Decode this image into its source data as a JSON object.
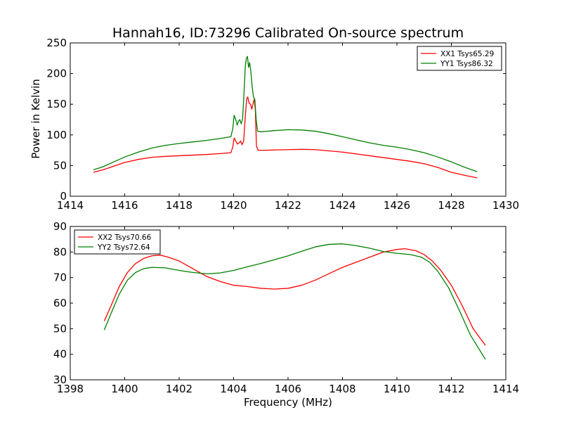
{
  "chart_data": [
    {
      "type": "line",
      "title": "Hannah16, ID:73296 Calibrated On-source spectrum",
      "xlabel": "",
      "ylabel": "Power in Kelvin",
      "xlim": [
        1414,
        1430
      ],
      "ylim": [
        0,
        250
      ],
      "xticks": [
        1414,
        1416,
        1418,
        1420,
        1422,
        1424,
        1426,
        1428,
        1430
      ],
      "yticks": [
        0,
        50,
        100,
        150,
        200,
        250
      ],
      "grid": false,
      "legend": "top-right",
      "series": [
        {
          "name": "XX1 Tsys65.29",
          "color": "#ff0000",
          "points": [
            [
              1414.85,
              39
            ],
            [
              1415.2,
              43
            ],
            [
              1415.6,
              49
            ],
            [
              1416.0,
              55
            ],
            [
              1416.5,
              60
            ],
            [
              1417.0,
              63.5
            ],
            [
              1417.5,
              65
            ],
            [
              1418.0,
              66
            ],
            [
              1418.5,
              67
            ],
            [
              1419.0,
              68
            ],
            [
              1419.5,
              69.5
            ],
            [
              1419.9,
              71
            ],
            [
              1419.97,
              80
            ],
            [
              1420.02,
              95
            ],
            [
              1420.08,
              90
            ],
            [
              1420.14,
              85
            ],
            [
              1420.2,
              87
            ],
            [
              1420.26,
              90
            ],
            [
              1420.31,
              84
            ],
            [
              1420.37,
              90
            ],
            [
              1420.43,
              130
            ],
            [
              1420.48,
              158
            ],
            [
              1420.52,
              162
            ],
            [
              1420.57,
              152
            ],
            [
              1420.62,
              150
            ],
            [
              1420.67,
              142
            ],
            [
              1420.72,
              152
            ],
            [
              1420.76,
              158
            ],
            [
              1420.8,
              140
            ],
            [
              1420.84,
              82
            ],
            [
              1420.9,
              75
            ],
            [
              1421.2,
              75
            ],
            [
              1421.6,
              75.5
            ],
            [
              1422.0,
              76
            ],
            [
              1422.5,
              76.5
            ],
            [
              1423.0,
              76
            ],
            [
              1423.5,
              74
            ],
            [
              1424.0,
              72
            ],
            [
              1424.5,
              69
            ],
            [
              1425.0,
              66
            ],
            [
              1425.5,
              63
            ],
            [
              1426.0,
              60
            ],
            [
              1426.5,
              57
            ],
            [
              1427.0,
              53
            ],
            [
              1427.5,
              47
            ],
            [
              1428.0,
              39
            ],
            [
              1428.5,
              34
            ],
            [
              1428.95,
              30
            ]
          ]
        },
        {
          "name": "YY1 Tsys86.32",
          "color": "#008000",
          "points": [
            [
              1414.85,
              43
            ],
            [
              1415.2,
              48
            ],
            [
              1415.6,
              56
            ],
            [
              1416.0,
              64
            ],
            [
              1416.5,
              72
            ],
            [
              1417.0,
              78.5
            ],
            [
              1417.5,
              83
            ],
            [
              1418.0,
              86
            ],
            [
              1418.5,
              88.5
            ],
            [
              1419.0,
              91
            ],
            [
              1419.5,
              94
            ],
            [
              1419.9,
              97
            ],
            [
              1419.97,
              110
            ],
            [
              1420.02,
              132
            ],
            [
              1420.08,
              125
            ],
            [
              1420.13,
              116
            ],
            [
              1420.18,
              122
            ],
            [
              1420.23,
              125
            ],
            [
              1420.28,
              118
            ],
            [
              1420.33,
              126
            ],
            [
              1420.38,
              165
            ],
            [
              1420.43,
              212
            ],
            [
              1420.47,
              225
            ],
            [
              1420.51,
              228
            ],
            [
              1420.55,
              210
            ],
            [
              1420.59,
              218
            ],
            [
              1420.63,
              205
            ],
            [
              1420.68,
              180
            ],
            [
              1420.73,
              162
            ],
            [
              1420.78,
              158
            ],
            [
              1420.83,
              125
            ],
            [
              1420.88,
              106
            ],
            [
              1421.0,
              105
            ],
            [
              1421.5,
              107
            ],
            [
              1422.0,
              108.5
            ],
            [
              1422.5,
              108
            ],
            [
              1423.0,
              106
            ],
            [
              1423.5,
              102
            ],
            [
              1424.0,
              97
            ],
            [
              1424.5,
              92
            ],
            [
              1425.0,
              87
            ],
            [
              1425.5,
              83
            ],
            [
              1426.0,
              80
            ],
            [
              1426.5,
              76
            ],
            [
              1427.0,
              71
            ],
            [
              1427.5,
              64
            ],
            [
              1428.0,
              56
            ],
            [
              1428.5,
              47
            ],
            [
              1428.95,
              40
            ]
          ]
        }
      ]
    },
    {
      "type": "line",
      "title": "",
      "xlabel": "Frequency (MHz)",
      "ylabel": "",
      "xlim": [
        1398,
        1414
      ],
      "ylim": [
        30,
        90
      ],
      "xticks": [
        1398,
        1400,
        1402,
        1404,
        1406,
        1408,
        1410,
        1412,
        1414
      ],
      "yticks": [
        30,
        40,
        50,
        60,
        70,
        80,
        90
      ],
      "grid": false,
      "legend": "top-left",
      "series": [
        {
          "name": "XX2 Tsys70.66",
          "color": "#ff0000",
          "points": [
            [
              1399.25,
              53
            ],
            [
              1399.5,
              59
            ],
            [
              1399.8,
              66.5
            ],
            [
              1400.1,
              72
            ],
            [
              1400.4,
              75.5
            ],
            [
              1400.7,
              77.5
            ],
            [
              1401.0,
              78.5
            ],
            [
              1401.3,
              78.8
            ],
            [
              1401.6,
              78
            ],
            [
              1402.0,
              76.5
            ],
            [
              1402.5,
              73.5
            ],
            [
              1403.0,
              70.5
            ],
            [
              1403.5,
              68.5
            ],
            [
              1404.0,
              67
            ],
            [
              1404.5,
              66.5
            ],
            [
              1405.0,
              65.8
            ],
            [
              1405.5,
              65.5
            ],
            [
              1406.0,
              65.8
            ],
            [
              1406.5,
              67
            ],
            [
              1407.0,
              69
            ],
            [
              1407.5,
              71.5
            ],
            [
              1408.0,
              74
            ],
            [
              1408.5,
              76
            ],
            [
              1409.0,
              78
            ],
            [
              1409.5,
              80
            ],
            [
              1410.0,
              81
            ],
            [
              1410.3,
              81.3
            ],
            [
              1410.7,
              80.5
            ],
            [
              1411.0,
              79
            ],
            [
              1411.3,
              76.5
            ],
            [
              1411.6,
              73
            ],
            [
              1412.0,
              67
            ],
            [
              1412.4,
              59
            ],
            [
              1412.8,
              50
            ],
            [
              1413.25,
              43.5
            ]
          ]
        },
        {
          "name": "YY2 Tsys72.64",
          "color": "#008000",
          "points": [
            [
              1399.25,
              49.5
            ],
            [
              1399.5,
              56
            ],
            [
              1399.8,
              63.5
            ],
            [
              1400.1,
              69
            ],
            [
              1400.4,
              72
            ],
            [
              1400.7,
              73.5
            ],
            [
              1401.0,
              74
            ],
            [
              1401.5,
              73.8
            ],
            [
              1402.0,
              72.8
            ],
            [
              1402.5,
              72
            ],
            [
              1403.0,
              71.5
            ],
            [
              1403.5,
              71.8
            ],
            [
              1404.0,
              72.8
            ],
            [
              1404.5,
              74.2
            ],
            [
              1405.0,
              75.5
            ],
            [
              1405.5,
              77
            ],
            [
              1406.0,
              78.5
            ],
            [
              1406.5,
              80.3
            ],
            [
              1407.0,
              82
            ],
            [
              1407.5,
              83
            ],
            [
              1408.0,
              83.2
            ],
            [
              1408.5,
              82.5
            ],
            [
              1409.0,
              81.5
            ],
            [
              1409.5,
              80.2
            ],
            [
              1410.0,
              79.5
            ],
            [
              1410.5,
              79
            ],
            [
              1410.9,
              78
            ],
            [
              1411.2,
              76
            ],
            [
              1411.5,
              72.5
            ],
            [
              1411.9,
              66
            ],
            [
              1412.3,
              57
            ],
            [
              1412.7,
              47.5
            ],
            [
              1413.25,
              38
            ]
          ]
        }
      ]
    }
  ]
}
